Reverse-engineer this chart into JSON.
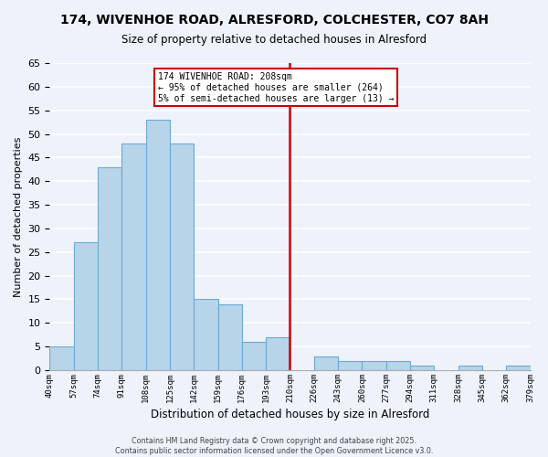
{
  "title": "174, WIVENHOE ROAD, ALRESFORD, COLCHESTER, CO7 8AH",
  "subtitle": "Size of property relative to detached houses in Alresford",
  "xlabel": "Distribution of detached houses by size in Alresford",
  "ylabel": "Number of detached properties",
  "bar_labels": [
    "40sqm",
    "57sqm",
    "74sqm",
    "91sqm",
    "108sqm",
    "125sqm",
    "142sqm",
    "159sqm",
    "176sqm",
    "193sqm",
    "210sqm",
    "226sqm",
    "243sqm",
    "260sqm",
    "277sqm",
    "294sqm",
    "311sqm",
    "328sqm",
    "345sqm",
    "362sqm",
    "379sqm"
  ],
  "bar_values": [
    5,
    27,
    43,
    48,
    53,
    48,
    15,
    14,
    6,
    7,
    0,
    3,
    2,
    2,
    2,
    1,
    0,
    1,
    0,
    1
  ],
  "bar_color": "#b8d4e8",
  "bar_edge_color": "#6aaad4",
  "vline_color": "#cc0000",
  "vline_index": 10,
  "annotation_title": "174 WIVENHOE ROAD: 208sqm",
  "annotation_line1": "← 95% of detached houses are smaller (264)",
  "annotation_line2": "5% of semi-detached houses are larger (13) →",
  "annotation_box_color": "#ffffff",
  "annotation_box_edge": "#cc0000",
  "ylim": [
    0,
    65
  ],
  "yticks": [
    0,
    5,
    10,
    15,
    20,
    25,
    30,
    35,
    40,
    45,
    50,
    55,
    60,
    65
  ],
  "footer_line1": "Contains HM Land Registry data © Crown copyright and database right 2025.",
  "footer_line2": "Contains public sector information licensed under the Open Government Licence v3.0.",
  "background_color": "#eef2fb",
  "grid_color": "#ffffff"
}
